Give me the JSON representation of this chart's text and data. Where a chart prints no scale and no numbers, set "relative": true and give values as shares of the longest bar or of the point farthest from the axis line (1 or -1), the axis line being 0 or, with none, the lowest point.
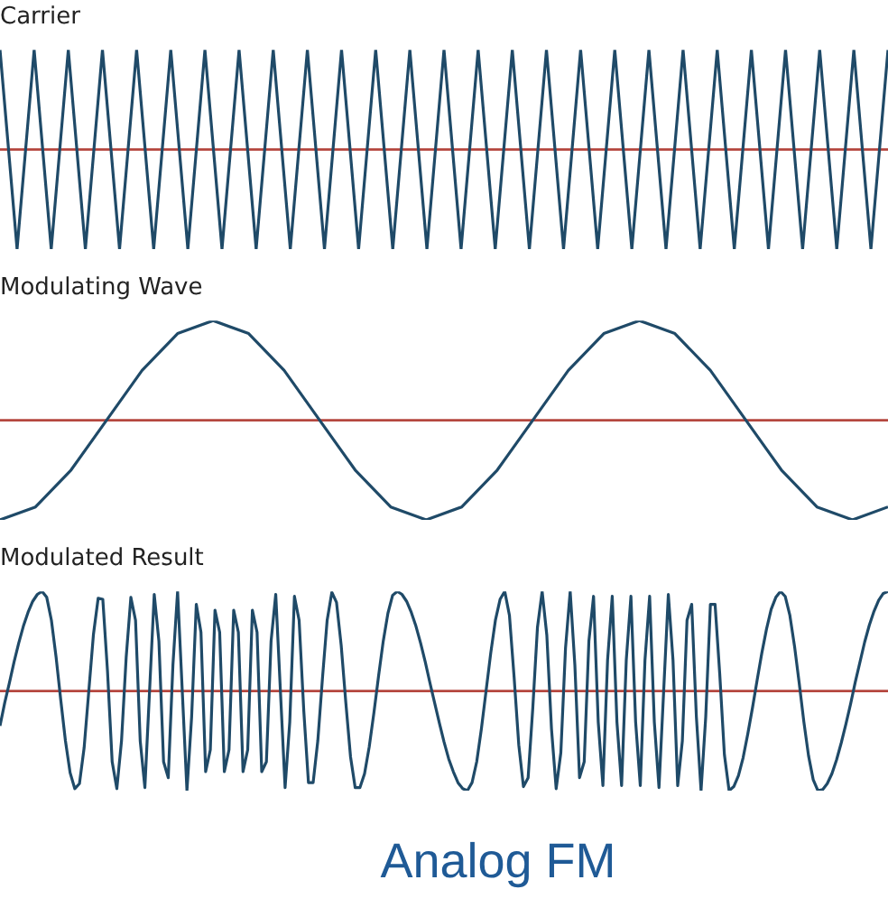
{
  "chart_data": [
    {
      "type": "line",
      "title": "Carrier",
      "relative": true,
      "tick_labels": false,
      "marker": "none",
      "line_style": "solid",
      "categories": [
        null,
        null,
        null,
        null,
        null,
        null,
        null,
        null,
        null,
        null,
        null,
        null,
        null,
        null,
        null,
        null,
        null,
        null,
        null,
        null,
        null,
        null,
        null,
        null,
        null,
        null,
        null,
        null,
        null,
        null,
        null,
        null,
        null,
        null,
        null,
        null,
        null,
        null,
        null,
        null,
        null,
        null,
        null,
        null,
        null,
        null,
        null,
        null,
        null,
        null,
        null,
        null,
        null
      ],
      "series": [
        {
          "color": "#1f4a68",
          "values": [
            1,
            -1,
            1,
            -1,
            1,
            -1,
            1,
            -1,
            1,
            -1,
            1,
            -1,
            1,
            -1,
            1,
            -1,
            1,
            -1,
            1,
            -1,
            1,
            -1,
            1,
            -1,
            1,
            -1,
            1,
            -1,
            1,
            -1,
            1,
            -1,
            1,
            -1,
            1,
            -1,
            1,
            -1,
            1,
            -1,
            1,
            -1,
            1,
            -1,
            1,
            -1,
            1,
            -1,
            1,
            -1,
            1,
            -1,
            1
          ]
        }
      ],
      "ref_lines": [
        {
          "axis": "y",
          "value": 0,
          "color": "#b5473f"
        }
      ]
    },
    {
      "type": "line",
      "title": "Modulating Wave",
      "relative": true,
      "tick_labels": false,
      "marker": "none",
      "line_style": "solid",
      "categories": [
        null,
        null,
        null,
        null,
        null,
        null,
        null,
        null,
        null,
        null,
        null,
        null,
        null,
        null,
        null,
        null,
        null,
        null,
        null,
        null,
        null,
        null,
        null,
        null,
        null,
        null
      ],
      "series": [
        {
          "color": "#1f4a68",
          "values": [
            -1,
            -0.87,
            -0.5,
            0,
            0.5,
            0.87,
            1,
            0.87,
            0.5,
            0,
            -0.5,
            -0.87,
            -1,
            -0.87,
            -0.5,
            0,
            0.5,
            0.87,
            1,
            0.87,
            0.5,
            0,
            -0.5,
            -0.87,
            -1,
            -0.87
          ]
        }
      ],
      "ref_lines": [
        {
          "axis": "y",
          "value": 0,
          "color": "#b5473f"
        }
      ]
    },
    {
      "type": "line",
      "title": "Modulated Result",
      "relative": true,
      "tick_labels": false,
      "marker": "none",
      "line_style": "solid",
      "categories": [
        null,
        null,
        null,
        null,
        null,
        null,
        null,
        null,
        null,
        null,
        null,
        null,
        null,
        null,
        null,
        null,
        null,
        null,
        null,
        null,
        null,
        null,
        null,
        null,
        null,
        null,
        null,
        null,
        null,
        null,
        null,
        null,
        null,
        null,
        null,
        null,
        null,
        null,
        null,
        null,
        null,
        null,
        null,
        null,
        null,
        null,
        null,
        null,
        null,
        null,
        null,
        null,
        null,
        null,
        null,
        null,
        null,
        null,
        null,
        null,
        null,
        null,
        null,
        null,
        null,
        null,
        null,
        null,
        null,
        null,
        null,
        null,
        null,
        null,
        null,
        null,
        null,
        null,
        null,
        null,
        null,
        null,
        null,
        null,
        null,
        null,
        null,
        null,
        null,
        null,
        null,
        null,
        null,
        null,
        null,
        null,
        null,
        null,
        null,
        null,
        null,
        null,
        null,
        null,
        null,
        null,
        null,
        null,
        null,
        null,
        null,
        null,
        null,
        null,
        null,
        null,
        null,
        null,
        null,
        null,
        null,
        null,
        null,
        null,
        null,
        null,
        null,
        null,
        null,
        null,
        null,
        null,
        null,
        null,
        null,
        null,
        null,
        null,
        null,
        null,
        null,
        null,
        null,
        null,
        null,
        null,
        null,
        null,
        null,
        null,
        null,
        null,
        null,
        null,
        null,
        null,
        null,
        null,
        null,
        null,
        null,
        null,
        null,
        null,
        null,
        null,
        null,
        null,
        null,
        null,
        null,
        null,
        null,
        null,
        null,
        null,
        null,
        null,
        null,
        null,
        null,
        null,
        null,
        null,
        null,
        null,
        null,
        null,
        null,
        null,
        null
      ],
      "series": [
        {
          "color": "#1f4a68",
          "values": [
            -0.35,
            -0.12,
            0.08,
            0.29,
            0.48,
            0.65,
            0.79,
            0.9,
            0.97,
            1,
            0.94,
            0.71,
            0.34,
            -0.09,
            -0.5,
            -0.82,
            -0.98,
            -0.93,
            -0.57,
            0,
            0.57,
            0.93,
            0.92,
            0.2,
            -0.71,
            -0.98,
            -0.5,
            0.34,
            0.94,
            0.71,
            -0.5,
            -0.97,
            0,
            0.97,
            0.5,
            -0.71,
            -0.87,
            0.26,
            1,
            0,
            -1,
            -0.26,
            0.87,
            0.59,
            -0.81,
            -0.59,
            0.81,
            0.59,
            -0.81,
            -0.59,
            0.81,
            0.59,
            -0.81,
            -0.59,
            0.81,
            0.59,
            -0.81,
            -0.71,
            0.5,
            0.97,
            0,
            -0.97,
            -0.31,
            0.95,
            0.71,
            -0.2,
            -0.92,
            -0.92,
            -0.5,
            0.13,
            0.71,
            0.99,
            0.89,
            0.46,
            -0.12,
            -0.66,
            -0.97,
            -0.97,
            -0.83,
            -0.56,
            -0.22,
            0.15,
            0.5,
            0.78,
            0.96,
            1,
            0.97,
            0.9,
            0.79,
            0.65,
            0.48,
            0.29,
            0.08,
            -0.12,
            -0.32,
            -0.51,
            -0.68,
            -0.81,
            -0.92,
            -0.98,
            -1,
            -0.92,
            -0.71,
            -0.38,
            0,
            0.38,
            0.71,
            0.92,
            1,
            0.76,
            0.14,
            -0.54,
            -0.96,
            -0.87,
            -0.17,
            0.64,
            1,
            0.56,
            -0.38,
            -0.98,
            -0.62,
            0.43,
            1,
            0.26,
            -0.87,
            -0.71,
            0.5,
            0.95,
            -0.31,
            -0.95,
            0.31,
            0.95,
            -0.31,
            -0.95,
            0.31,
            0.95,
            -0.31,
            -0.95,
            0.31,
            0.95,
            -0.31,
            -0.97,
            0,
            0.97,
            0.31,
            -0.95,
            -0.5,
            0.71,
            0.87,
            -0.26,
            -1,
            -0.26,
            0.87,
            0.87,
            0.17,
            -0.64,
            -1,
            -0.96,
            -0.85,
            -0.67,
            -0.43,
            -0.17,
            0.11,
            0.38,
            0.62,
            0.82,
            0.94,
            1,
            0.95,
            0.76,
            0.45,
            0.08,
            -0.31,
            -0.65,
            -0.89,
            -1,
            -0.99,
            -0.93,
            -0.83,
            -0.69,
            -0.52,
            -0.33,
            -0.13,
            0.09,
            0.29,
            0.49,
            0.66,
            0.8,
            0.91,
            0.98,
            1
          ]
        }
      ],
      "ref_lines": [
        {
          "axis": "y",
          "value": 0,
          "color": "#b5473f"
        }
      ],
      "annotations": [
        "Analog FM"
      ]
    }
  ]
}
